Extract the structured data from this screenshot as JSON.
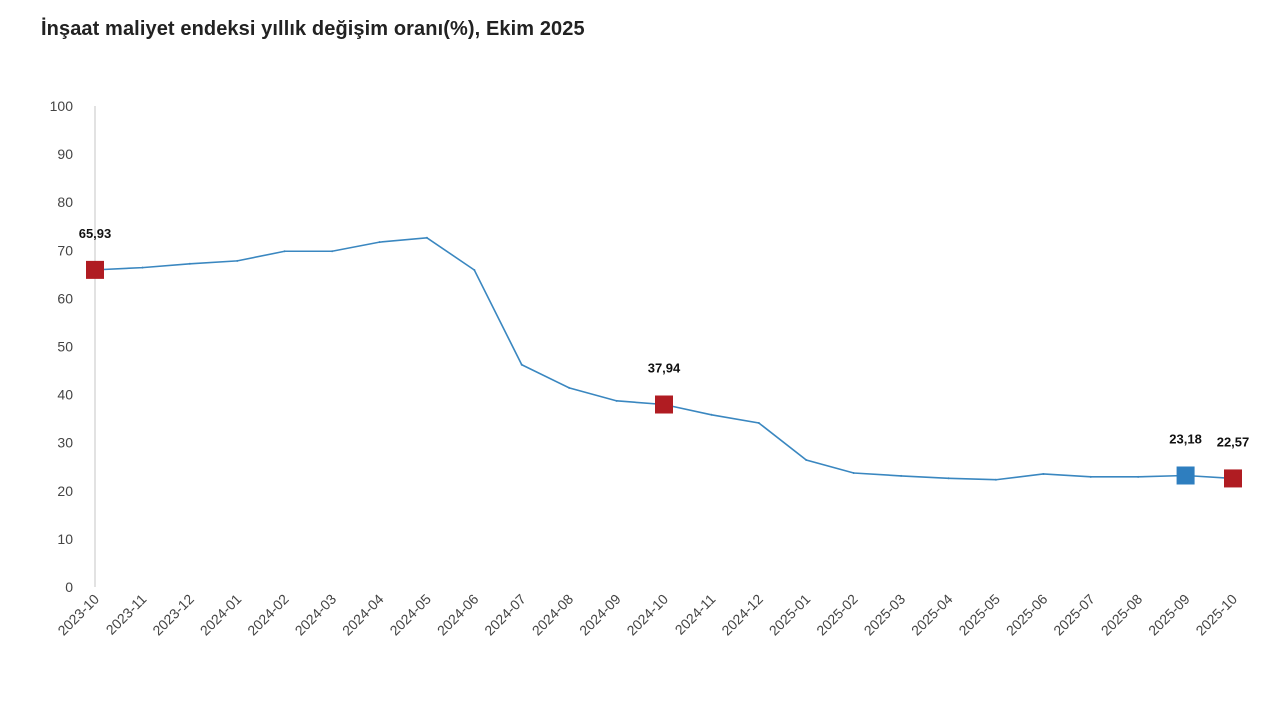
{
  "chart_data": {
    "type": "line",
    "title": "İnşaat maliyet endeksi yıllık değişim oranı(%), Ekim 2025",
    "xlabel": "",
    "ylabel": "",
    "ylim": [
      0,
      100
    ],
    "yticks": [
      "0",
      "10",
      "20",
      "30",
      "40",
      "50",
      "60",
      "70",
      "80",
      "90",
      "100"
    ],
    "grid": false,
    "categories": [
      "2023-10",
      "2023-11",
      "2023-12",
      "2024-01",
      "2024-02",
      "2024-03",
      "2024-04",
      "2024-05",
      "2024-06",
      "2024-07",
      "2024-08",
      "2024-09",
      "2024-10",
      "2024-11",
      "2024-12",
      "2025-01",
      "2025-02",
      "2025-03",
      "2025-04",
      "2025-05",
      "2025-06",
      "2025-07",
      "2025-08",
      "2025-09",
      "2025-10"
    ],
    "series": [
      {
        "values": [
          65.93,
          66.4,
          67.2,
          67.8,
          69.8,
          69.8,
          71.7,
          72.6,
          65.9,
          46.2,
          41.4,
          38.7,
          37.94,
          35.8,
          34.1,
          26.4,
          23.7,
          23.1,
          22.6,
          22.3,
          23.5,
          22.9,
          22.9,
          23.18,
          22.57
        ],
        "color": "#3a87c0"
      }
    ],
    "highlights": [
      {
        "category": "2023-10",
        "value": 65.93,
        "label": "65,93",
        "color": "#b01c22"
      },
      {
        "category": "2024-10",
        "value": 37.94,
        "label": "37,94",
        "color": "#b01c22"
      },
      {
        "category": "2025-09",
        "value": 23.18,
        "label": "23,18",
        "color": "#2e7ebf"
      },
      {
        "category": "2025-10",
        "value": 22.57,
        "label": "22,57",
        "color": "#b01c22"
      }
    ]
  }
}
